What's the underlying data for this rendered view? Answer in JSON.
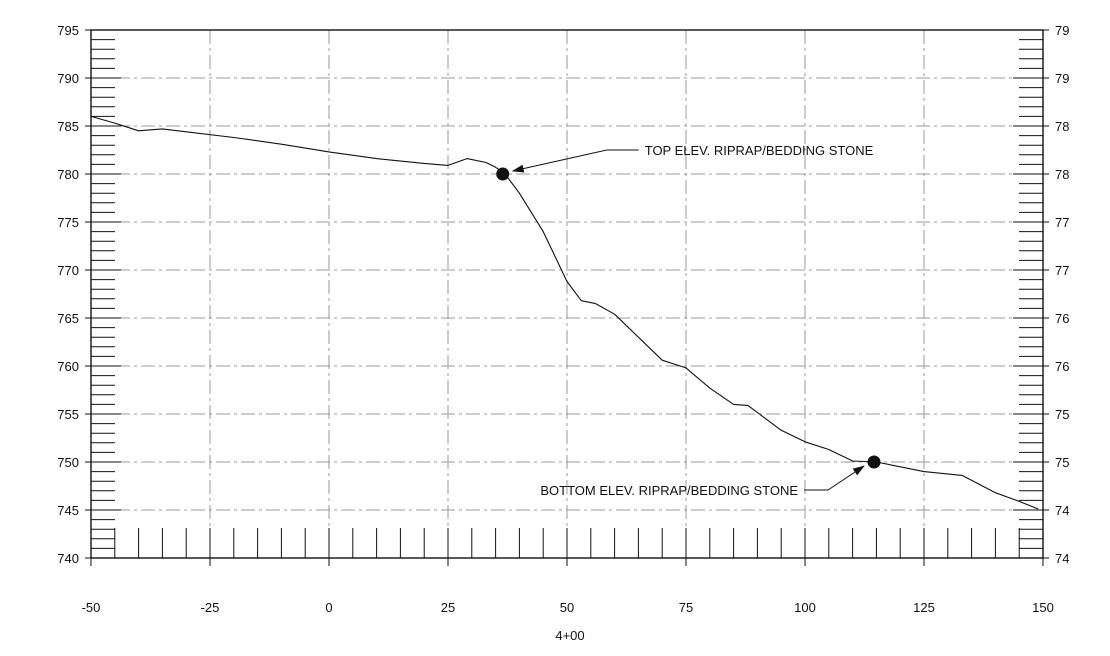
{
  "chart_data": {
    "type": "line",
    "xlabel": "4+00",
    "xlim": [
      -50,
      150
    ],
    "ylim": [
      740,
      795
    ],
    "x_ticks": [
      "-50",
      "-25",
      "0",
      "25",
      "50",
      "75",
      "100",
      "125",
      "150"
    ],
    "y_ticks": [
      "795",
      "790",
      "785",
      "780",
      "775",
      "770",
      "765",
      "760",
      "755",
      "750",
      "745",
      "740"
    ],
    "y_ticks_right": [
      "79",
      "79",
      "78",
      "78",
      "77",
      "77",
      "76",
      "76",
      "75",
      "75",
      "74",
      "74"
    ],
    "grid": true,
    "series": [
      {
        "x": [
          -50,
          -45,
          -40,
          -35,
          -30,
          -20,
          -10,
          0,
          10,
          20,
          25,
          29,
          33,
          35,
          37,
          40,
          45,
          50,
          53,
          56,
          60,
          65,
          70,
          75,
          80,
          85,
          88,
          95,
          100,
          105,
          110,
          115,
          125,
          133,
          140,
          145,
          149
        ],
        "y": [
          786,
          785.3,
          784.5,
          784.7,
          784.4,
          783.8,
          783.1,
          782.3,
          781.6,
          781.1,
          780.9,
          781.6,
          781.2,
          780.7,
          780,
          778,
          774,
          768.8,
          766.8,
          766.5,
          765.4,
          763,
          760.6,
          759.8,
          757.7,
          756,
          755.9,
          753.3,
          752.1,
          751.3,
          750.1,
          750,
          749,
          748.6,
          746.8,
          745.9,
          745.1
        ]
      }
    ],
    "annotations": [
      {
        "text": "TOP ELEV. RIPRAP/BEDDING STONE",
        "x": 36.5,
        "y": 780
      },
      {
        "text": "BOTTOM ELEV. RIPRAP/BEDDING STONE",
        "x": 114.5,
        "y": 750
      }
    ]
  },
  "style": {
    "line_color": "#111111",
    "grid_color": "#9a9a9a",
    "marker_color": "#111111"
  }
}
